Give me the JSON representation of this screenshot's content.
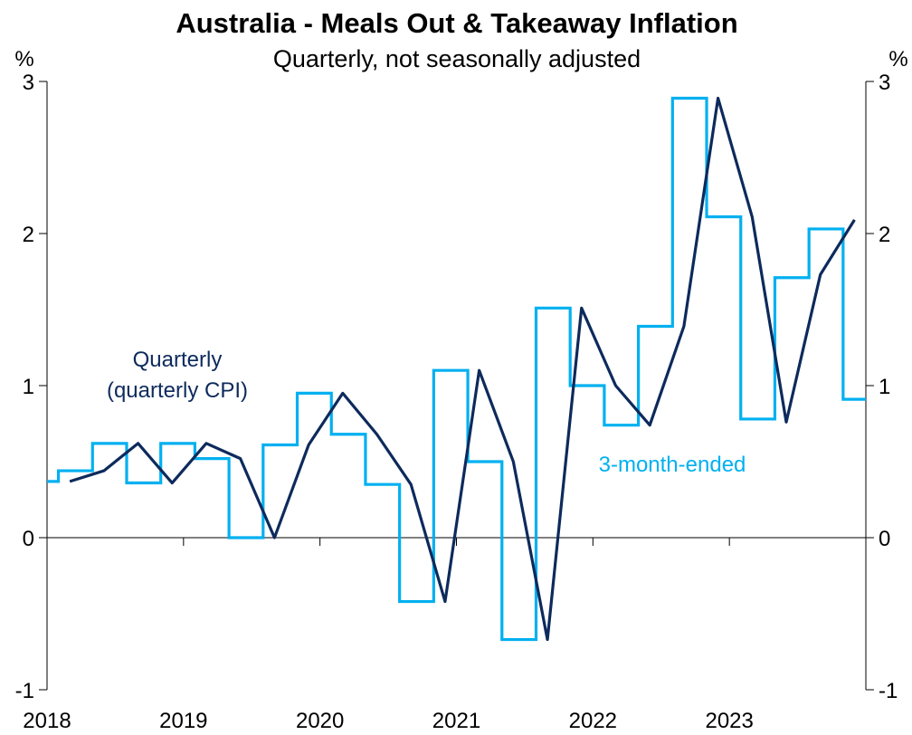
{
  "chart_data": {
    "type": "line",
    "title": "Australia - Meals Out & Takeaway Inflation",
    "subtitle": "Quarterly, not seasonally adjusted",
    "ylabel_left": "%",
    "ylabel_right": "%",
    "ylim": [
      -1,
      3
    ],
    "yticks": [
      3,
      2,
      1,
      0,
      -1
    ],
    "xlim": [
      2018.0,
      2024.0
    ],
    "xticks": [
      "2018",
      "2019",
      "2020",
      "2021",
      "2022",
      "2023"
    ],
    "grid": false,
    "series": [
      {
        "name": "3-month-ended",
        "color": "#00B0F0",
        "style": "step",
        "x": [
          "2018-01",
          "2018-02",
          "2018-03",
          "2018-04",
          "2018-05",
          "2018-06",
          "2018-07",
          "2018-08",
          "2018-09",
          "2018-10",
          "2018-11",
          "2018-12",
          "2019-01",
          "2019-02",
          "2019-03",
          "2019-04",
          "2019-05",
          "2019-06",
          "2019-07",
          "2019-08",
          "2019-09",
          "2019-10",
          "2019-11",
          "2019-12",
          "2020-01",
          "2020-02",
          "2020-03",
          "2020-04",
          "2020-05",
          "2020-06",
          "2020-07",
          "2020-08",
          "2020-09",
          "2020-10",
          "2020-11",
          "2020-12",
          "2021-01",
          "2021-02",
          "2021-03",
          "2021-04",
          "2021-05",
          "2021-06",
          "2021-07",
          "2021-08",
          "2021-09",
          "2021-10",
          "2021-11",
          "2021-12",
          "2022-01",
          "2022-02",
          "2022-03",
          "2022-04",
          "2022-05",
          "2022-06",
          "2022-07",
          "2022-08",
          "2022-09",
          "2022-10",
          "2022-11",
          "2022-12",
          "2023-01",
          "2023-02",
          "2023-03",
          "2023-04",
          "2023-05",
          "2023-06",
          "2023-07",
          "2023-08",
          "2023-09",
          "2023-10",
          "2023-11",
          "2023-12"
        ],
        "values": [
          0.37,
          0.44,
          0.44,
          0.44,
          0.62,
          0.62,
          0.62,
          0.36,
          0.36,
          0.36,
          0.62,
          0.62,
          0.62,
          0.52,
          0.52,
          0.52,
          0.0,
          0.0,
          0.0,
          0.61,
          0.61,
          0.61,
          0.95,
          0.95,
          0.95,
          0.68,
          0.68,
          0.68,
          0.35,
          0.35,
          0.35,
          -0.42,
          -0.42,
          -0.42,
          1.1,
          1.1,
          1.1,
          0.5,
          0.5,
          0.5,
          -0.67,
          -0.67,
          -0.67,
          1.51,
          1.51,
          1.51,
          1.0,
          1.0,
          1.0,
          0.74,
          0.74,
          0.74,
          1.39,
          1.39,
          1.39,
          2.89,
          2.89,
          2.89,
          2.11,
          2.11,
          2.11,
          0.78,
          0.78,
          0.78,
          1.71,
          1.71,
          1.71,
          2.03,
          2.03,
          2.03,
          0.91,
          0.91
        ]
      },
      {
        "name": "Quarterly (quarterly CPI)",
        "color": "#0D2A5C",
        "style": "line",
        "x": [
          "2018-Q1",
          "2018-Q2",
          "2018-Q3",
          "2018-Q4",
          "2019-Q1",
          "2019-Q2",
          "2019-Q3",
          "2019-Q4",
          "2020-Q1",
          "2020-Q2",
          "2020-Q3",
          "2020-Q4",
          "2021-Q1",
          "2021-Q2",
          "2021-Q3",
          "2021-Q4",
          "2022-Q1",
          "2022-Q2",
          "2022-Q3",
          "2022-Q4",
          "2023-Q1",
          "2023-Q2",
          "2023-Q3",
          "2023-Q4"
        ],
        "values": [
          0.37,
          0.44,
          0.62,
          0.36,
          0.62,
          0.52,
          0.0,
          0.61,
          0.95,
          0.68,
          0.35,
          -0.42,
          1.1,
          0.5,
          -0.67,
          1.51,
          1.0,
          0.74,
          1.39,
          2.89,
          2.11,
          0.76,
          1.73,
          2.09
        ]
      }
    ],
    "annotations": {
      "quarterly_line1": "Quarterly",
      "quarterly_line2": "(quarterly CPI)",
      "monthly": "3-month-ended"
    }
  }
}
